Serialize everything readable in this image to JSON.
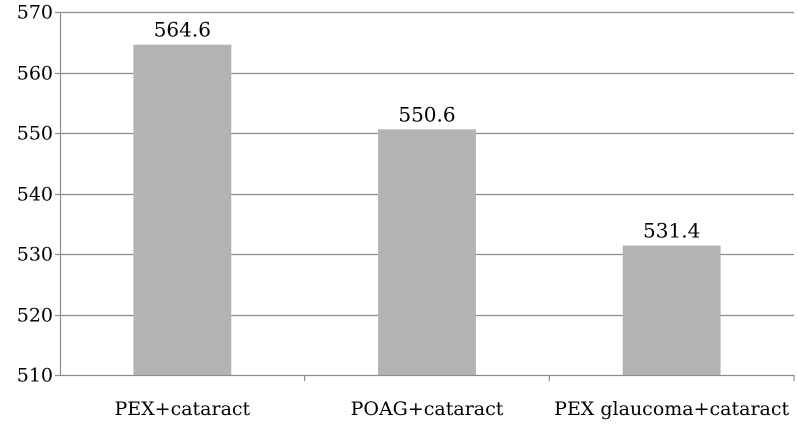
{
  "chart_data": {
    "type": "bar",
    "title": "",
    "xlabel": "",
    "ylabel": "",
    "categories": [
      "PEX+cataract",
      "POAG+cataract",
      "PEX glaucoma+cataract"
    ],
    "values": [
      564.6,
      550.6,
      531.4
    ],
    "data_labels": [
      "564.6",
      "550.6",
      "531.4"
    ],
    "ylim": [
      510,
      570
    ],
    "yticks": [
      510,
      520,
      530,
      540,
      550,
      560,
      570
    ],
    "ytick_labels": [
      "510",
      "520",
      "530",
      "540",
      "550",
      "560",
      "570"
    ],
    "grid": true,
    "legend": "none",
    "colors": {
      "bar": "#b3b3b3",
      "grid": "#8c8c8c",
      "axis": "#8c8c8c"
    }
  }
}
